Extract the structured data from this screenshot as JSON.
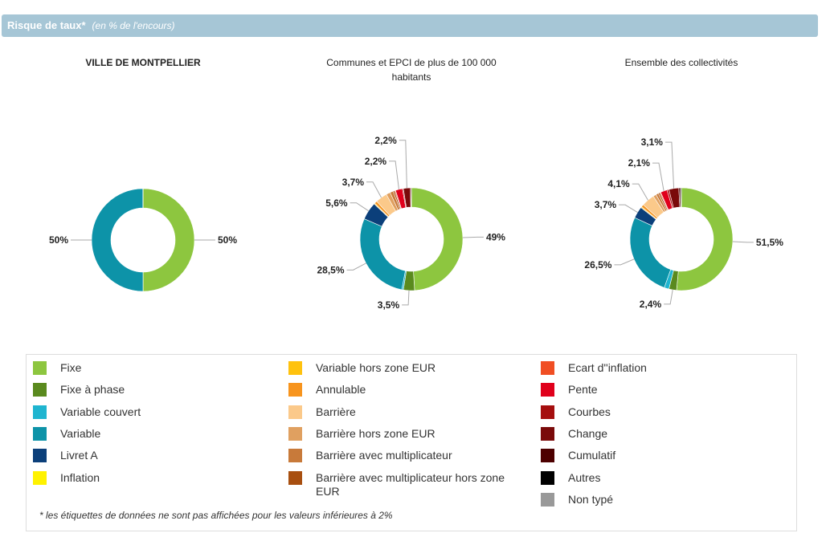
{
  "header": {
    "title": "Risque de taux*",
    "subtitle": "(en % de l'encours)"
  },
  "legend": {
    "categories": [
      "Fixe",
      "Fixe à phase",
      "Variable couvert",
      "Variable",
      "Livret A",
      "Inflation",
      "Variable hors zone EUR",
      "Annulable",
      "Barrière",
      "Barrière hors zone EUR",
      "Barrière avec multiplicateur",
      "Barrière avec multiplicateur hors zone EUR",
      "Ecart d''inflation",
      "Pente",
      "Courbes",
      "Change",
      "Cumulatif",
      "Autres",
      "Non typé"
    ],
    "colors": [
      "#8dc63f",
      "#5a8a1e",
      "#1fb5d0",
      "#0d93a8",
      "#0b3f7a",
      "#fff200",
      "#ffc20e",
      "#f7941d",
      "#fbc98a",
      "#e0a060",
      "#c87a3a",
      "#a84f10",
      "#f04e23",
      "#e0001b",
      "#a50e0e",
      "#7a0a0a",
      "#4d0000",
      "#000000",
      "#999999"
    ]
  },
  "chart_data": [
    {
      "type": "donut",
      "title": "VILLE DE MONTPELLIER",
      "values": [
        50,
        0,
        0,
        50,
        0,
        0,
        0,
        0,
        0,
        0,
        0,
        0,
        0,
        0,
        0,
        0,
        0,
        0,
        0
      ],
      "value_labels": [
        "50%",
        null,
        null,
        "50%",
        null,
        null,
        null,
        null,
        null,
        null,
        null,
        null,
        null,
        null,
        null,
        null,
        null,
        null,
        null
      ]
    },
    {
      "type": "donut",
      "title": "Communes et EPCI de plus de 100 000 habitants",
      "values": [
        49,
        3.5,
        0.5,
        28.5,
        5.6,
        0,
        0.3,
        0.8,
        3.7,
        1.3,
        1,
        0.5,
        0.3,
        2.2,
        0.3,
        2.2,
        0.3,
        0,
        0
      ],
      "value_labels": [
        "49%",
        "3,5%",
        null,
        "28,5%",
        "5,6%",
        null,
        null,
        null,
        "3,7%",
        null,
        null,
        null,
        null,
        "2,2%",
        null,
        "2,2%",
        null,
        null,
        null
      ]
    },
    {
      "type": "donut",
      "title": "Ensemble des collectivités",
      "values": [
        51.5,
        2.4,
        1.5,
        26.5,
        3.7,
        0,
        0.3,
        0.8,
        4.1,
        1,
        0.8,
        0.5,
        0.3,
        2.1,
        0.6,
        3.1,
        0.5,
        0.3,
        0
      ],
      "value_labels": [
        "51,5%",
        "2,4%",
        null,
        "26,5%",
        "3,7%",
        null,
        null,
        null,
        "4,1%",
        null,
        null,
        null,
        null,
        "2,1%",
        null,
        "3,1%",
        null,
        null,
        null
      ]
    }
  ],
  "footnote": "* les étiquettes de données ne sont pas affichées pour les valeurs inférieures à 2%"
}
